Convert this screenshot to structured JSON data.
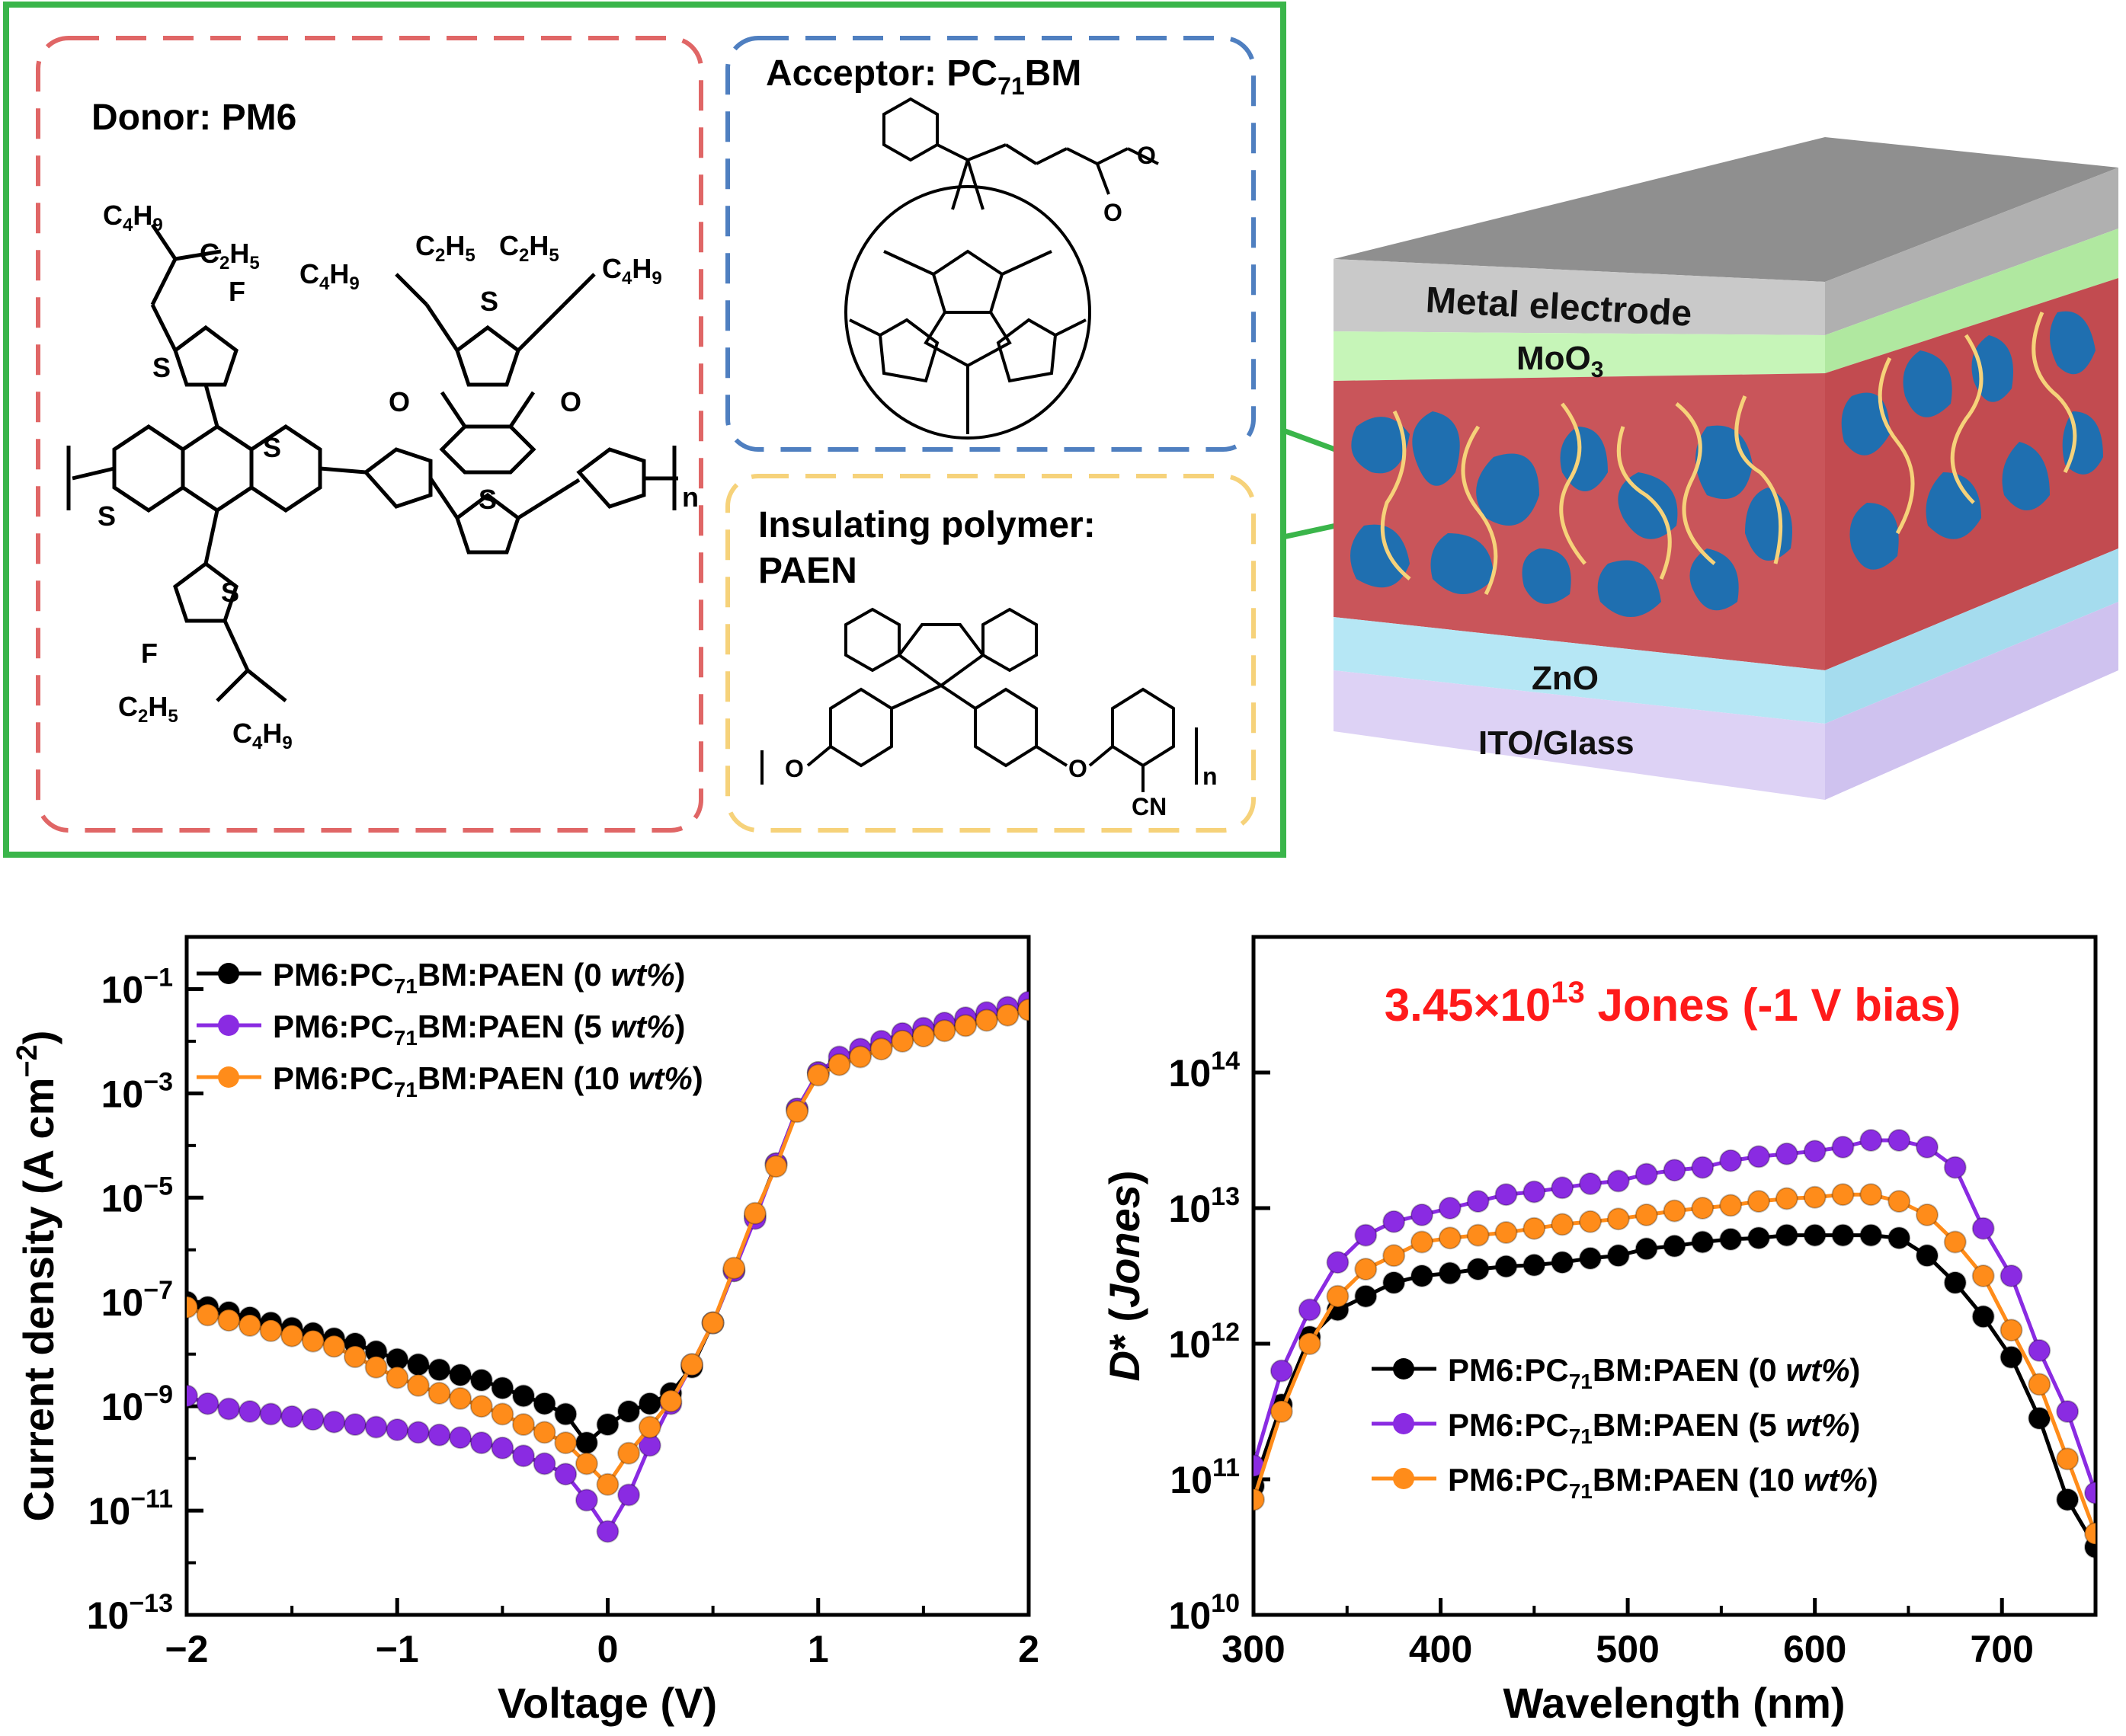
{
  "structures": {
    "donor_title": "Donor: PM6",
    "acceptor_title_prefix": "Acceptor: PC",
    "acceptor_title_sub": "71",
    "acceptor_title_suffix": "BM",
    "insulating_title_line1": "Insulating polymer:",
    "insulating_title_line2": "PAEN",
    "colors": {
      "donor_box": "#e06666",
      "acceptor_box": "#4f7fc0",
      "insulator_box": "#f6d27a",
      "outer_box": "#3ab54a"
    }
  },
  "device": {
    "layers": [
      "Metal electrode",
      "MoO",
      "ZnO",
      "ITO/Glass"
    ],
    "moo3_sub": "3",
    "colors": {
      "metal": "#c9c9c9",
      "moo3": "#c6f5b8",
      "active": "#c9555a",
      "domains": "#1f6fb0",
      "zno": "#b6e7f5",
      "ito": "#ddd2f5"
    }
  },
  "chart_data": [
    {
      "type": "line",
      "xlabel": "Voltage (V)",
      "ylabel": "Current density (A cm",
      "ylabel_sup": "−2",
      "ylabel_close": ")",
      "yscale": "log",
      "xlim": [
        -2,
        2
      ],
      "ylim_exp": [
        -13,
        0
      ],
      "xticks": [
        "−2",
        "−1",
        "0",
        "1",
        "2"
      ],
      "yticks": [
        {
          "exp": -1,
          "base": "10",
          "sup": "−1"
        },
        {
          "exp": -3,
          "base": "10",
          "sup": "−3"
        },
        {
          "exp": -5,
          "base": "10",
          "sup": "−5"
        },
        {
          "exp": -7,
          "base": "10",
          "sup": "−7"
        },
        {
          "exp": -9,
          "base": "10",
          "sup": "−9"
        },
        {
          "exp": -11,
          "base": "10",
          "sup": "−11"
        },
        {
          "exp": -13,
          "base": "10",
          "sup": "−13"
        }
      ],
      "legend_position": "top-left",
      "series": [
        {
          "name_prefix": "PM6:PC",
          "name_sub": "71",
          "name_mid": "BM:PAEN (0 ",
          "name_italic": "wt%",
          "name_end": ")",
          "color": "#000000",
          "points": [
            [
              -2.0,
              -7.0
            ],
            [
              -1.9,
              -7.1
            ],
            [
              -1.8,
              -7.2
            ],
            [
              -1.7,
              -7.3
            ],
            [
              -1.6,
              -7.4
            ],
            [
              -1.5,
              -7.5
            ],
            [
              -1.4,
              -7.6
            ],
            [
              -1.3,
              -7.7
            ],
            [
              -1.2,
              -7.8
            ],
            [
              -1.1,
              -7.95
            ],
            [
              -1.0,
              -8.1
            ],
            [
              -0.9,
              -8.2
            ],
            [
              -0.8,
              -8.3
            ],
            [
              -0.7,
              -8.4
            ],
            [
              -0.6,
              -8.5
            ],
            [
              -0.5,
              -8.65
            ],
            [
              -0.4,
              -8.8
            ],
            [
              -0.3,
              -8.95
            ],
            [
              -0.2,
              -9.15
            ],
            [
              -0.1,
              -9.7
            ],
            [
              0.0,
              -9.35
            ],
            [
              0.1,
              -9.1
            ],
            [
              0.2,
              -8.95
            ],
            [
              0.3,
              -8.75
            ],
            [
              0.4,
              -8.25
            ],
            [
              0.5,
              -7.4
            ],
            [
              0.6,
              -6.4
            ],
            [
              0.7,
              -5.35
            ],
            [
              0.8,
              -4.35
            ],
            [
              0.9,
              -3.3
            ],
            [
              1.0,
              -2.6
            ],
            [
              1.1,
              -2.4
            ],
            [
              1.2,
              -2.25
            ],
            [
              1.3,
              -2.1
            ],
            [
              1.4,
              -1.95
            ],
            [
              1.5,
              -1.85
            ],
            [
              1.6,
              -1.75
            ],
            [
              1.7,
              -1.65
            ],
            [
              1.8,
              -1.55
            ],
            [
              1.9,
              -1.45
            ],
            [
              2.0,
              -1.35
            ]
          ]
        },
        {
          "name_prefix": "PM6:PC",
          "name_sub": "71",
          "name_mid": "BM:PAEN (5 ",
          "name_italic": "wt%",
          "name_end": ")",
          "color": "#8a2be2",
          "points": [
            [
              -2.0,
              -8.8
            ],
            [
              -1.9,
              -8.95
            ],
            [
              -1.8,
              -9.05
            ],
            [
              -1.7,
              -9.1
            ],
            [
              -1.6,
              -9.15
            ],
            [
              -1.5,
              -9.2
            ],
            [
              -1.4,
              -9.25
            ],
            [
              -1.3,
              -9.3
            ],
            [
              -1.2,
              -9.35
            ],
            [
              -1.1,
              -9.4
            ],
            [
              -1.0,
              -9.45
            ],
            [
              -0.9,
              -9.5
            ],
            [
              -0.8,
              -9.55
            ],
            [
              -0.7,
              -9.6
            ],
            [
              -0.6,
              -9.7
            ],
            [
              -0.5,
              -9.8
            ],
            [
              -0.4,
              -9.95
            ],
            [
              -0.3,
              -10.1
            ],
            [
              -0.2,
              -10.3
            ],
            [
              -0.1,
              -10.8
            ],
            [
              0.0,
              -11.4
            ],
            [
              0.1,
              -10.7
            ],
            [
              0.2,
              -9.75
            ],
            [
              0.3,
              -8.95
            ],
            [
              0.4,
              -8.2
            ],
            [
              0.5,
              -7.4
            ],
            [
              0.6,
              -6.4
            ],
            [
              0.7,
              -5.4
            ],
            [
              0.8,
              -4.35
            ],
            [
              0.9,
              -3.3
            ],
            [
              1.0,
              -2.6
            ],
            [
              1.1,
              -2.3
            ],
            [
              1.2,
              -2.15
            ],
            [
              1.3,
              -2.0
            ],
            [
              1.4,
              -1.85
            ],
            [
              1.5,
              -1.75
            ],
            [
              1.6,
              -1.65
            ],
            [
              1.7,
              -1.55
            ],
            [
              1.8,
              -1.45
            ],
            [
              1.9,
              -1.35
            ],
            [
              2.0,
              -1.25
            ]
          ]
        },
        {
          "name_prefix": "PM6:PC",
          "name_sub": "71",
          "name_mid": "BM:PAEN (10 ",
          "name_italic": "wt%",
          "name_end": ")",
          "color": "#ff8c1a",
          "points": [
            [
              -2.0,
              -7.1
            ],
            [
              -1.9,
              -7.25
            ],
            [
              -1.8,
              -7.35
            ],
            [
              -1.7,
              -7.45
            ],
            [
              -1.6,
              -7.55
            ],
            [
              -1.5,
              -7.65
            ],
            [
              -1.4,
              -7.75
            ],
            [
              -1.3,
              -7.85
            ],
            [
              -1.2,
              -8.05
            ],
            [
              -1.1,
              -8.25
            ],
            [
              -1.0,
              -8.45
            ],
            [
              -0.9,
              -8.6
            ],
            [
              -0.8,
              -8.75
            ],
            [
              -0.7,
              -8.85
            ],
            [
              -0.6,
              -9.0
            ],
            [
              -0.5,
              -9.15
            ],
            [
              -0.4,
              -9.35
            ],
            [
              -0.3,
              -9.5
            ],
            [
              -0.2,
              -9.7
            ],
            [
              -0.1,
              -10.1
            ],
            [
              0.0,
              -10.5
            ],
            [
              0.1,
              -9.9
            ],
            [
              0.2,
              -9.4
            ],
            [
              0.3,
              -8.9
            ],
            [
              0.4,
              -8.2
            ],
            [
              0.5,
              -7.4
            ],
            [
              0.6,
              -6.35
            ],
            [
              0.7,
              -5.3
            ],
            [
              0.8,
              -4.4
            ],
            [
              0.9,
              -3.35
            ],
            [
              1.0,
              -2.65
            ],
            [
              1.1,
              -2.45
            ],
            [
              1.2,
              -2.3
            ],
            [
              1.3,
              -2.15
            ],
            [
              1.4,
              -2.0
            ],
            [
              1.5,
              -1.9
            ],
            [
              1.6,
              -1.8
            ],
            [
              1.7,
              -1.7
            ],
            [
              1.8,
              -1.6
            ],
            [
              1.9,
              -1.5
            ],
            [
              2.0,
              -1.4
            ]
          ]
        }
      ]
    },
    {
      "type": "line",
      "xlabel": "Wavelength (nm)",
      "ylabel_italic_prefix": "D",
      "ylabel_mid": "* (",
      "ylabel_italic": "Jones",
      "ylabel_close": ")",
      "yscale": "log",
      "xlim": [
        300,
        750
      ],
      "ylim_exp": [
        10,
        15
      ],
      "xticks": [
        "300",
        "400",
        "500",
        "600",
        "700"
      ],
      "yticks": [
        {
          "exp": 10,
          "base": "10",
          "sup": "10"
        },
        {
          "exp": 11,
          "base": "10",
          "sup": "11"
        },
        {
          "exp": 12,
          "base": "10",
          "sup": "12"
        },
        {
          "exp": 13,
          "base": "10",
          "sup": "13"
        },
        {
          "exp": 14,
          "base": "10",
          "sup": "14"
        }
      ],
      "annotation_main": "3.45×10",
      "annotation_sup": "13",
      "annotation_rest": " Jones (-1 V bias)",
      "annotation_color": "#ff1a1a",
      "legend_position": "bottom-right",
      "series": [
        {
          "name_prefix": "PM6:PC",
          "name_sub": "71",
          "name_mid": "BM:PAEN (0 ",
          "name_italic": "wt%",
          "name_end": ")",
          "color": "#000000",
          "points": [
            [
              300,
              10.95
            ],
            [
              315,
              11.55
            ],
            [
              330,
              12.05
            ],
            [
              345,
              12.25
            ],
            [
              360,
              12.35
            ],
            [
              375,
              12.45
            ],
            [
              390,
              12.5
            ],
            [
              405,
              12.52
            ],
            [
              420,
              12.55
            ],
            [
              435,
              12.57
            ],
            [
              450,
              12.58
            ],
            [
              465,
              12.6
            ],
            [
              480,
              12.63
            ],
            [
              495,
              12.65
            ],
            [
              510,
              12.7
            ],
            [
              525,
              12.72
            ],
            [
              540,
              12.75
            ],
            [
              555,
              12.77
            ],
            [
              570,
              12.78
            ],
            [
              585,
              12.8
            ],
            [
              600,
              12.8
            ],
            [
              615,
              12.8
            ],
            [
              630,
              12.8
            ],
            [
              645,
              12.78
            ],
            [
              660,
              12.65
            ],
            [
              675,
              12.45
            ],
            [
              690,
              12.2
            ],
            [
              705,
              11.9
            ],
            [
              720,
              11.45
            ],
            [
              735,
              10.85
            ],
            [
              750,
              10.5
            ]
          ]
        },
        {
          "name_prefix": "PM6:PC",
          "name_sub": "71",
          "name_mid": "BM:PAEN (5 ",
          "name_italic": "wt%",
          "name_end": ")",
          "color": "#8a2be2",
          "points": [
            [
              300,
              11.1
            ],
            [
              315,
              11.8
            ],
            [
              330,
              12.25
            ],
            [
              345,
              12.6
            ],
            [
              360,
              12.8
            ],
            [
              375,
              12.9
            ],
            [
              390,
              12.95
            ],
            [
              405,
              13.0
            ],
            [
              420,
              13.05
            ],
            [
              435,
              13.1
            ],
            [
              450,
              13.12
            ],
            [
              465,
              13.15
            ],
            [
              480,
              13.18
            ],
            [
              495,
              13.2
            ],
            [
              510,
              13.25
            ],
            [
              525,
              13.28
            ],
            [
              540,
              13.3
            ],
            [
              555,
              13.35
            ],
            [
              570,
              13.38
            ],
            [
              585,
              13.4
            ],
            [
              600,
              13.42
            ],
            [
              615,
              13.45
            ],
            [
              630,
              13.5
            ],
            [
              645,
              13.5
            ],
            [
              660,
              13.45
            ],
            [
              675,
              13.3
            ],
            [
              690,
              12.85
            ],
            [
              705,
              12.5
            ],
            [
              720,
              11.95
            ],
            [
              735,
              11.5
            ],
            [
              750,
              10.9
            ]
          ]
        },
        {
          "name_prefix": "PM6:PC",
          "name_sub": "71",
          "name_mid": "BM:PAEN (10 ",
          "name_italic": "wt%",
          "name_end": ")",
          "color": "#ff8c1a",
          "points": [
            [
              300,
              10.85
            ],
            [
              315,
              11.5
            ],
            [
              330,
              12.0
            ],
            [
              345,
              12.35
            ],
            [
              360,
              12.55
            ],
            [
              375,
              12.65
            ],
            [
              390,
              12.75
            ],
            [
              405,
              12.78
            ],
            [
              420,
              12.8
            ],
            [
              435,
              12.82
            ],
            [
              450,
              12.85
            ],
            [
              465,
              12.88
            ],
            [
              480,
              12.9
            ],
            [
              495,
              12.92
            ],
            [
              510,
              12.95
            ],
            [
              525,
              12.98
            ],
            [
              540,
              13.0
            ],
            [
              555,
              13.02
            ],
            [
              570,
              13.05
            ],
            [
              585,
              13.07
            ],
            [
              600,
              13.08
            ],
            [
              615,
              13.1
            ],
            [
              630,
              13.1
            ],
            [
              645,
              13.05
            ],
            [
              660,
              12.95
            ],
            [
              675,
              12.75
            ],
            [
              690,
              12.5
            ],
            [
              705,
              12.1
            ],
            [
              720,
              11.7
            ],
            [
              735,
              11.15
            ],
            [
              750,
              10.6
            ]
          ]
        }
      ]
    }
  ]
}
